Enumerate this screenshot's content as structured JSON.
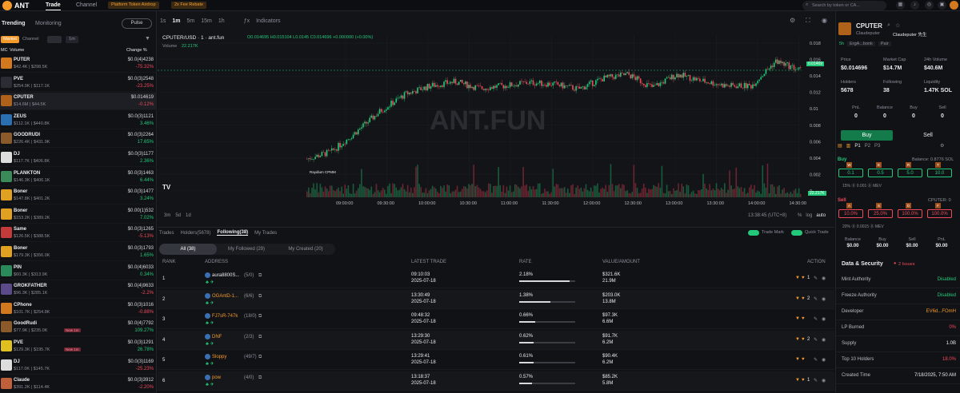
{
  "header": {
    "brand": "ANT",
    "nav": [
      "Trade",
      "Channel"
    ],
    "promo1": "Platform Token Airdrop",
    "promo2": "2x Fee Rebate",
    "search_placeholder": "Search by token or CA..."
  },
  "left": {
    "tabs": [
      "Trending",
      "Monitoring"
    ],
    "pulse": "Pulse",
    "filters": [
      "Market",
      "Channel",
      "1m"
    ],
    "col_mc": "MC",
    "col_volume": "Volume",
    "col_change": "Change %",
    "tokens": [
      {
        "sym": "PUTER",
        "sub": "$42.4K | $298.5K",
        "price": "$0.0(4)4238",
        "change": "-75.32%",
        "color": "#d2781e",
        "dir": "r"
      },
      {
        "sym": "PVE",
        "sub": "$254.9K | $117.1K",
        "price": "$0.0(3)2548",
        "change": "-23.25%",
        "color": "#2a2d33",
        "dir": "r"
      },
      {
        "sym": "CPUTER",
        "sub": "$14.6M | $44.5K",
        "price": "$0.014619",
        "change": "-0.12%",
        "color": "#b0621a",
        "dir": "r"
      },
      {
        "sym": "ZEUS",
        "sub": "$112.1K | $440.8K",
        "price": "$0.0(3)1121",
        "change": "3.46%",
        "color": "#2b6fb3",
        "dir": "g"
      },
      {
        "sym": "GOODRUDI",
        "sub": "$226.4K | $431.9K",
        "price": "$0.0(3)2264",
        "change": "17.65%",
        "color": "#8a5a2a",
        "dir": "g"
      },
      {
        "sym": "DJ",
        "sub": "$117.7K | $406.8K",
        "price": "$0.0(3)1177",
        "change": "2.36%",
        "color": "#ddd",
        "dir": "g"
      },
      {
        "sym": "PLANKTON",
        "sub": "$146.3K | $406.1K",
        "price": "$0.0(3)1463",
        "change": "6.44%",
        "color": "#3a8a5a",
        "dir": "g"
      },
      {
        "sym": "Boner",
        "sub": "$147.8K | $401.2K",
        "price": "$0.0(3)1477",
        "change": "3.24%",
        "color": "#e0a020",
        "dir": "g"
      },
      {
        "sym": "Boner",
        "sub": "$153.2K | $389.2K",
        "price": "$0.00(1)532",
        "change": "7.02%",
        "color": "#e0a020",
        "dir": "g"
      },
      {
        "sym": "Same",
        "sub": "$126.5K | $388.5K",
        "price": "$0.0(3)1265",
        "change": "-5.13%",
        "color": "#c23a3a",
        "dir": "r"
      },
      {
        "sym": "Boner",
        "sub": "$179.3K | $356.0K",
        "price": "$0.0(3)1793",
        "change": "1.65%",
        "color": "#e0a020",
        "dir": "g"
      },
      {
        "sym": "PIN",
        "sub": "$60.3K | $313.9K",
        "price": "$0.0(4)6033",
        "change": "0.34%",
        "color": "#2a8a5a",
        "dir": "g"
      },
      {
        "sym": "GROKFATHER",
        "sub": "$96.3K | $285.1K",
        "price": "$0.0(4)9633",
        "change": "-2.2%",
        "color": "#5a4a8a",
        "dir": "r"
      },
      {
        "sym": "CPhone",
        "sub": "$101.7K | $254.8K",
        "price": "$0.0(3)1016",
        "change": "-0.88%",
        "color": "#d2781e",
        "dir": "r"
      },
      {
        "sym": "GoodRudi",
        "sub": "$77.9K | $235.0K",
        "price": "$0.0(4)7792",
        "change": "109.27%",
        "color": "#8a5a2a",
        "dir": "g",
        "badge": "New 1m"
      },
      {
        "sym": "PVE",
        "sub": "$129.3K | $195.7K",
        "price": "$0.0(3)1291",
        "change": "26.78%",
        "color": "#e0c020",
        "dir": "g",
        "badge": "New 1m"
      },
      {
        "sym": "DJ",
        "sub": "$117.0K | $145.7K",
        "price": "$0.0(3)1169",
        "change": "-25.23%",
        "color": "#ddd",
        "dir": "r"
      },
      {
        "sym": "Claude",
        "sub": "$391.2K | $114.4K",
        "price": "$0.0(3)3912",
        "change": "-2.20%",
        "color": "#c0603a",
        "dir": "r"
      }
    ]
  },
  "chart": {
    "intervals": [
      "1s",
      "1m",
      "5m",
      "15m",
      "1h"
    ],
    "indicators": "Indicators",
    "pair": "CPUTER/USD · 1 · ant.fun",
    "ohlc": "O0.014695 H0.015104 L0.0145 C0.014696 +0.000000 (+0.00%)",
    "volume_label": "Volume",
    "volume_value": "22.217K",
    "watermark": "ANT.FUN",
    "raydium": "Raydium CPMM",
    "price_tag": "0.01469",
    "vol_tag": "22.217K",
    "y_ticks": [
      "0.018",
      "0.016",
      "0.014",
      "0.012",
      "0.01",
      "0.008",
      "0.006",
      "0.004",
      "0.002",
      "0"
    ],
    "x_ticks": [
      "09:00:00",
      "09:30:00",
      "10:00:00",
      "10:30:00",
      "11:00:00",
      "11:30:00",
      "12:00:00",
      "12:30:00",
      "13:00:00",
      "13:30:00",
      "14:00:00",
      "14:30:00"
    ],
    "ranges": [
      "3m",
      "5d",
      "1d"
    ],
    "clock": "13:38:45 (UTC+8)",
    "scale_opts": [
      "%",
      "log",
      "auto"
    ]
  },
  "chart_data": {
    "type": "line",
    "ylim": [
      0,
      0.018
    ],
    "x": [
      "08:45",
      "09:00",
      "09:15",
      "09:30",
      "09:45",
      "10:00",
      "10:15",
      "10:30",
      "10:45",
      "11:00",
      "11:15",
      "11:30",
      "11:45",
      "12:00",
      "12:15",
      "12:30",
      "12:45",
      "13:00",
      "13:15",
      "13:30",
      "13:38"
    ],
    "series": [
      {
        "values": [
          0.0039,
          0.0048,
          0.0072,
          0.0098,
          0.0118,
          0.0128,
          0.0133,
          0.0125,
          0.0128,
          0.0132,
          0.013,
          0.0124,
          0.0137,
          0.0142,
          0.0126,
          0.0142,
          0.0134,
          0.0128,
          0.0128,
          0.0158,
          0.0147
        ]
      }
    ]
  },
  "table": {
    "tabs": [
      "Trades",
      "Holders(5678)",
      "Following(38)",
      "My Trades"
    ],
    "trade_mark": "Trade Mark",
    "quick_trade": "Quick Trade",
    "subtabs": [
      "All (38)",
      "My Followed (29)",
      "My Created (20)"
    ],
    "headers": [
      "RANK",
      "ADDRESS",
      "LATEST TRADE",
      "RATE",
      "VALUE/AMOUNT",
      "ACTION"
    ],
    "rows": [
      {
        "rank": "1",
        "addr": "aura8800S...",
        "count": "(5/0)",
        "date": "09:10:03",
        "day": "2025-07-18",
        "rate": "2.18%",
        "rate_v": 0.9,
        "value": "$321.6K",
        "amount": "21.9M",
        "addr_color": "#e8eaee",
        "act": "1"
      },
      {
        "rank": "2",
        "addr": "OGAntD-1...",
        "count": "(6/6)",
        "date": "13:30:49",
        "day": "2025-07-18",
        "rate": "1.38%",
        "rate_v": 0.55,
        "value": "$203.0K",
        "amount": "13.8M",
        "addr_color": "#f39a2b",
        "act": "2"
      },
      {
        "rank": "3",
        "addr": "FJ7sR-747k",
        "count": "(18/0)",
        "date": "09:48:32",
        "day": "2025-07-18",
        "rate": "0.66%",
        "rate_v": 0.28,
        "value": "$97.3K",
        "amount": "6.6M",
        "addr_color": "#f39a2b",
        "act": ""
      },
      {
        "rank": "4",
        "addr": "DNF",
        "count": "(2/3)",
        "date": "13:29:30",
        "day": "2025-07-18",
        "rate": "0.62%",
        "rate_v": 0.26,
        "value": "$91.7K",
        "amount": "6.2M",
        "addr_color": "#f39a2b",
        "act": "2"
      },
      {
        "rank": "5",
        "addr": "Sloppy",
        "count": "(49/7)",
        "date": "13:29:41",
        "day": "2025-07-18",
        "rate": "0.61%",
        "rate_v": 0.25,
        "value": "$90.4K",
        "amount": "6.2M",
        "addr_color": "#f39a2b",
        "act": ""
      },
      {
        "rank": "6",
        "addr": "pow",
        "count": "(4/0)",
        "date": "13:18:37",
        "day": "2025-07-18",
        "rate": "0.57%",
        "rate_v": 0.23,
        "value": "$85.2K",
        "amount": "5.8M",
        "addr_color": "#f39a2b",
        "act": "1"
      }
    ]
  },
  "right": {
    "name": "CPUTER",
    "creator": "Claudeputer",
    "creator2": "Claudeputer 先生",
    "links": [
      "5h",
      "ErgA...bonk",
      "Pair"
    ],
    "stats": [
      {
        "label": "Price",
        "value": "$0.014696"
      },
      {
        "label": "Market Cap",
        "value": "$14.7M"
      },
      {
        "label": "24h Volume",
        "value": "$40.6M"
      },
      {
        "label": "Holders",
        "value": "5678"
      },
      {
        "label": "Following",
        "value": "38"
      },
      {
        "label": "Liquidity",
        "value": "1.47K SOL"
      }
    ],
    "pos": [
      {
        "label": "PnL",
        "value": "0"
      },
      {
        "label": "Balance",
        "value": "0"
      },
      {
        "label": "Buy",
        "value": "0"
      },
      {
        "label": "Sell",
        "value": "0"
      }
    ],
    "buy_tab": "Buy",
    "sell_tab": "Sell",
    "presets": [
      "P1",
      "P2",
      "P3"
    ],
    "buy_label": "Buy",
    "balance_info": "Balance: 0.8776 SOL",
    "buy_amounts": [
      "0.1",
      "0.5",
      "5.0",
      "10.0"
    ],
    "buy_keys": [
      "W",
      "E",
      "R",
      "T"
    ],
    "buy_fee": "15%  ⓪ 0.001  ⓪ MEV",
    "sell_label": "Sell",
    "cputer_info": "CPUTER: 0",
    "sell_amounts": [
      "10.0%",
      "25.0%",
      "100.0%",
      "100.0%"
    ],
    "sell_keys": [
      "A",
      "S",
      "D",
      "F"
    ],
    "sell_fee": "20%  ⓪ 0.0015  ⓪ MEV",
    "summary": [
      {
        "label": "Balance",
        "value": "$0.00"
      },
      {
        "label": "Buy",
        "value": "$0.00"
      },
      {
        "label": "Sell",
        "value": "$0.00"
      },
      {
        "label": "PnL",
        "value": "$0.00"
      }
    ],
    "ds_title": "Data & Security",
    "ds_issues": "2 Issues",
    "ds": [
      {
        "label": "Mint Authority",
        "value": "Disabled",
        "c": "g"
      },
      {
        "label": "Freeze Authority",
        "value": "Disabled",
        "c": "g"
      },
      {
        "label": "Developer",
        "value": "EV6d...FOmH",
        "c": "o"
      },
      {
        "label": "LP Burned",
        "value": "0%",
        "c": "r"
      },
      {
        "label": "Supply",
        "value": "1.0B",
        "c": "w"
      },
      {
        "label": "Top 10 Holders",
        "value": "18.0%",
        "c": "r"
      },
      {
        "label": "Created Time",
        "value": "7/18/2025, 7:50 AM",
        "c": "w"
      }
    ]
  }
}
